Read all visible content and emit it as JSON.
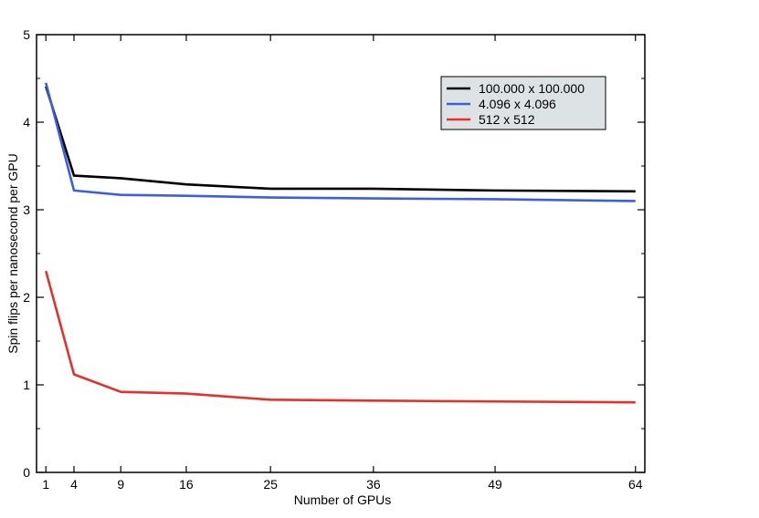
{
  "chart_data": {
    "type": "line",
    "xlabel": "Number of GPUs",
    "ylabel": "Spin flips per nanosecond per GPU",
    "xlim": [
      0,
      65
    ],
    "ylim": [
      0,
      5
    ],
    "x_ticks": [
      1,
      4,
      9,
      16,
      25,
      36,
      49,
      64
    ],
    "y_ticks": [
      0,
      1,
      2,
      3,
      4,
      5
    ],
    "grid": false,
    "legend_position": "top-right",
    "series": [
      {
        "name": "100.000 x 100.000",
        "color": "#000000",
        "x": [
          1,
          4,
          9,
          16,
          25,
          36,
          49,
          64
        ],
        "y": [
          4.41,
          3.39,
          3.36,
          3.29,
          3.24,
          3.24,
          3.22,
          3.21
        ]
      },
      {
        "name": "4.096 x 4.096",
        "color": "#3b5fe0",
        "x": [
          1,
          4,
          9,
          16,
          25,
          36,
          49,
          64
        ],
        "y": [
          4.45,
          3.22,
          3.17,
          3.16,
          3.14,
          3.13,
          3.12,
          3.1
        ]
      },
      {
        "name": "512 x 512",
        "color": "#e8302a",
        "x": [
          1,
          4,
          9,
          16,
          25,
          36,
          49,
          64
        ],
        "y": [
          2.3,
          1.12,
          0.92,
          0.9,
          0.83,
          0.82,
          0.81,
          0.8
        ]
      }
    ]
  }
}
